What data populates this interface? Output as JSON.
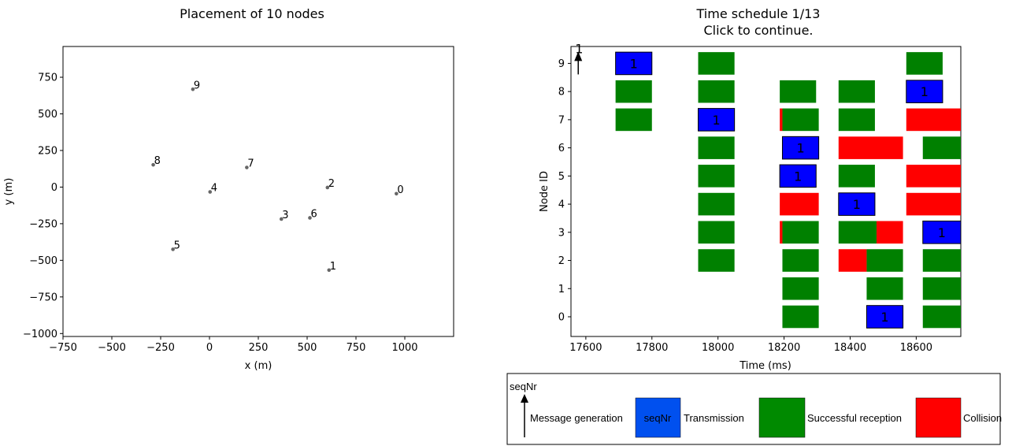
{
  "chart_data": [
    {
      "type": "scatter",
      "title": "Placement of 10 nodes",
      "xlabel": "x (m)",
      "ylabel": "y (m)",
      "xlim": [
        -750,
        1250
      ],
      "ylim": [
        -1020,
        960
      ],
      "xticks": [
        -750,
        -500,
        -250,
        0,
        250,
        500,
        750,
        1000
      ],
      "yticks": [
        750,
        500,
        250,
        0,
        -250,
        -500,
        -750,
        -1000
      ],
      "grid": false,
      "points": [
        {
          "label": "0",
          "x": 957,
          "y": -45
        },
        {
          "label": "1",
          "x": 612,
          "y": -567
        },
        {
          "label": "2",
          "x": 604,
          "y": -3
        },
        {
          "label": "3",
          "x": 368,
          "y": -218
        },
        {
          "label": "4",
          "x": 3,
          "y": -33
        },
        {
          "label": "5",
          "x": -187,
          "y": -425
        },
        {
          "label": "6",
          "x": 514,
          "y": -210
        },
        {
          "label": "7",
          "x": 191,
          "y": 134
        },
        {
          "label": "8",
          "x": -288,
          "y": 152
        },
        {
          "label": "9",
          "x": -85,
          "y": 668
        }
      ]
    },
    {
      "type": "timeline",
      "title": "Time schedule 1/13",
      "subtitle": "Click to continue.",
      "xlabel": "Time (ms)",
      "ylabel": "Node ID",
      "xlim": [
        17555,
        18735
      ],
      "ylim": [
        -0.7,
        9.6
      ],
      "xticks": [
        17600,
        17800,
        18000,
        18200,
        18400,
        18600
      ],
      "yticks": [
        0,
        1,
        2,
        3,
        4,
        5,
        6,
        7,
        8,
        9
      ],
      "colors": {
        "transmission": "#0000ff",
        "reception": "#008000",
        "collision": "#ff0000"
      },
      "generation": {
        "node": 9,
        "time": 17577,
        "label": "1"
      },
      "blocks": [
        {
          "node": 9,
          "start": 17690,
          "end": 17800,
          "kind": "transmission",
          "label": "1"
        },
        {
          "node": 8,
          "start": 17690,
          "end": 17800,
          "kind": "reception"
        },
        {
          "node": 7,
          "start": 17690,
          "end": 17800,
          "kind": "reception"
        },
        {
          "node": 9,
          "start": 17940,
          "end": 18050,
          "kind": "reception"
        },
        {
          "node": 8,
          "start": 17940,
          "end": 18050,
          "kind": "reception"
        },
        {
          "node": 7,
          "start": 17940,
          "end": 18050,
          "kind": "transmission",
          "label": "1"
        },
        {
          "node": 6,
          "start": 17940,
          "end": 18050,
          "kind": "reception"
        },
        {
          "node": 5,
          "start": 17940,
          "end": 18050,
          "kind": "reception"
        },
        {
          "node": 4,
          "start": 17940,
          "end": 18050,
          "kind": "reception"
        },
        {
          "node": 3,
          "start": 17940,
          "end": 18050,
          "kind": "reception"
        },
        {
          "node": 2,
          "start": 17940,
          "end": 18050,
          "kind": "reception"
        },
        {
          "node": 8,
          "start": 18187,
          "end": 18297,
          "kind": "reception"
        },
        {
          "node": 7,
          "start": 18187,
          "end": 18195,
          "kind": "collision"
        },
        {
          "node": 7,
          "start": 18195,
          "end": 18305,
          "kind": "reception"
        },
        {
          "node": 6,
          "start": 18195,
          "end": 18305,
          "kind": "transmission",
          "label": "1"
        },
        {
          "node": 5,
          "start": 18187,
          "end": 18297,
          "kind": "transmission",
          "label": "1"
        },
        {
          "node": 4,
          "start": 18187,
          "end": 18305,
          "kind": "collision"
        },
        {
          "node": 3,
          "start": 18187,
          "end": 18195,
          "kind": "collision"
        },
        {
          "node": 3,
          "start": 18195,
          "end": 18305,
          "kind": "reception"
        },
        {
          "node": 2,
          "start": 18195,
          "end": 18305,
          "kind": "reception"
        },
        {
          "node": 1,
          "start": 18195,
          "end": 18305,
          "kind": "reception"
        },
        {
          "node": 0,
          "start": 18195,
          "end": 18305,
          "kind": "reception"
        },
        {
          "node": 8,
          "start": 18365,
          "end": 18475,
          "kind": "reception"
        },
        {
          "node": 7,
          "start": 18365,
          "end": 18475,
          "kind": "reception"
        },
        {
          "node": 6,
          "start": 18365,
          "end": 18560,
          "kind": "collision"
        },
        {
          "node": 5,
          "start": 18365,
          "end": 18475,
          "kind": "reception"
        },
        {
          "node": 4,
          "start": 18365,
          "end": 18475,
          "kind": "transmission",
          "label": "1"
        },
        {
          "node": 3,
          "start": 18365,
          "end": 18480,
          "kind": "reception"
        },
        {
          "node": 3,
          "start": 18480,
          "end": 18560,
          "kind": "collision"
        },
        {
          "node": 2,
          "start": 18365,
          "end": 18450,
          "kind": "collision"
        },
        {
          "node": 2,
          "start": 18450,
          "end": 18560,
          "kind": "reception"
        },
        {
          "node": 1,
          "start": 18450,
          "end": 18560,
          "kind": "reception"
        },
        {
          "node": 0,
          "start": 18450,
          "end": 18560,
          "kind": "transmission",
          "label": "1"
        },
        {
          "node": 9,
          "start": 18570,
          "end": 18680,
          "kind": "reception"
        },
        {
          "node": 8,
          "start": 18570,
          "end": 18680,
          "kind": "transmission",
          "label": "1"
        },
        {
          "node": 7,
          "start": 18570,
          "end": 18735,
          "kind": "collision"
        },
        {
          "node": 6,
          "start": 18620,
          "end": 18735,
          "kind": "reception"
        },
        {
          "node": 5,
          "start": 18570,
          "end": 18735,
          "kind": "collision"
        },
        {
          "node": 4,
          "start": 18570,
          "end": 18735,
          "kind": "collision"
        },
        {
          "node": 3,
          "start": 18620,
          "end": 18735,
          "kind": "transmission",
          "label": "1"
        },
        {
          "node": 2,
          "start": 18620,
          "end": 18735,
          "kind": "reception"
        },
        {
          "node": 1,
          "start": 18620,
          "end": 18735,
          "kind": "reception"
        },
        {
          "node": 0,
          "start": 18620,
          "end": 18735,
          "kind": "reception"
        }
      ]
    }
  ],
  "legend": {
    "generation_label": "seqNr",
    "generation_text": "Message generation",
    "transmission_box": "seqNr",
    "transmission_text": "Transmission",
    "reception_text": "Successful reception",
    "collision_text": "Collision",
    "transmission_color": "#0050ef",
    "reception_color": "#008a00",
    "collision_color": "#ff0000"
  }
}
